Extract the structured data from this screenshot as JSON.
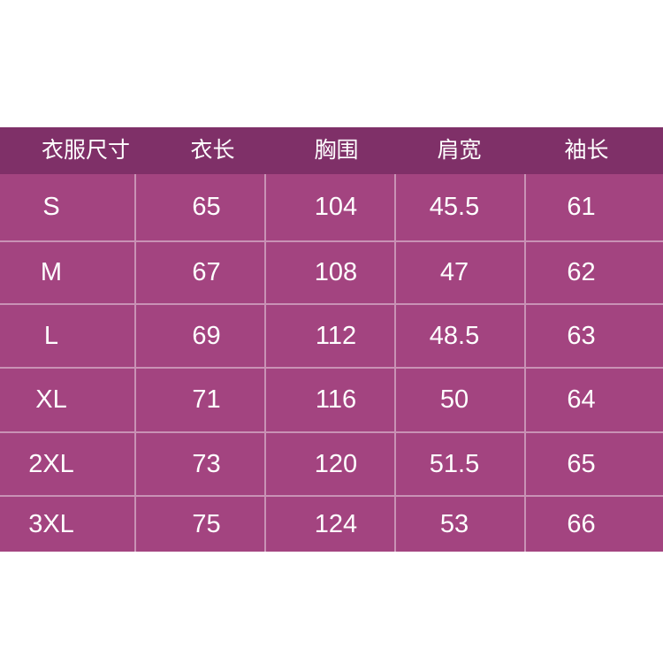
{
  "page": {
    "background": "#ffffff"
  },
  "table": {
    "colors": {
      "header_bg": "#7f3068",
      "body_bg": "#a34480",
      "divider": "rgba(255,255,255,0.42)",
      "text": "#ffffff"
    },
    "headers": [
      "衣服尺寸",
      "衣长",
      "胸围",
      "肩宽",
      "袖长"
    ],
    "rows": [
      {
        "cells": [
          "S",
          "65",
          "104",
          "45.5",
          "61"
        ]
      },
      {
        "cells": [
          "M",
          "67",
          "108",
          "47",
          "62"
        ]
      },
      {
        "cells": [
          "L",
          "69",
          "112",
          "48.5",
          "63"
        ]
      },
      {
        "cells": [
          "XL",
          "71",
          "116",
          "50",
          "64"
        ]
      },
      {
        "cells": [
          "2XL",
          "73",
          "120",
          "51.5",
          "65"
        ]
      },
      {
        "cells": [
          "3XL",
          "75",
          "124",
          "53",
          "66"
        ]
      }
    ]
  },
  "chart_data": {
    "type": "table",
    "columns": [
      "衣服尺寸",
      "衣长",
      "胸围",
      "肩宽",
      "袖长"
    ],
    "rows": [
      [
        "S",
        65,
        104,
        45.5,
        61
      ],
      [
        "M",
        67,
        108,
        47,
        62
      ],
      [
        "L",
        69,
        112,
        48.5,
        63
      ],
      [
        "XL",
        71,
        116,
        50,
        64
      ],
      [
        "2XL",
        73,
        120,
        51.5,
        65
      ],
      [
        "3XL",
        75,
        124,
        53,
        66
      ]
    ]
  }
}
